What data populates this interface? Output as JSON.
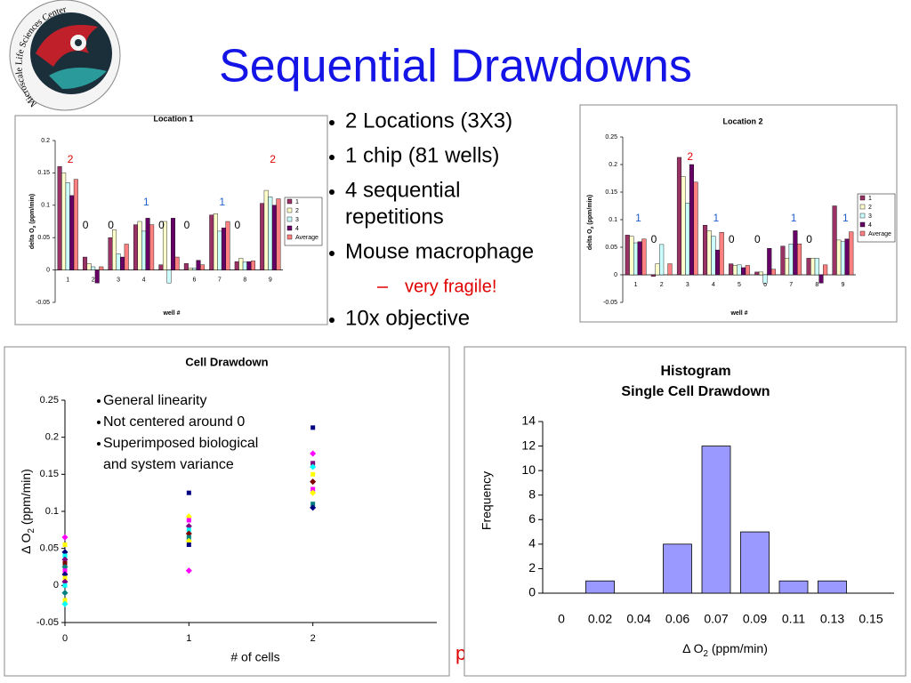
{
  "title": "Sequential Drawdowns",
  "logo_text": "Microscale Life Sciences Center",
  "bullets": [
    {
      "lines": [
        "2 Locations (3X3)"
      ],
      "level": 1
    },
    {
      "lines": [
        "1 chip (81 wells)"
      ],
      "level": 1
    },
    {
      "lines": [
        "4 sequential",
        "repetitions"
      ],
      "level": 1
    },
    {
      "lines": [
        "Mouse macrophage"
      ],
      "level": 1
    },
    {
      "lines": [
        "very fragile!"
      ],
      "level": 2
    },
    {
      "lines": [
        "10x objective"
      ],
      "level": 1
    }
  ],
  "note": "paper in progress",
  "chart_data": [
    {
      "type": "bar",
      "title": "Location 1",
      "categories": [
        "1",
        "2",
        "3",
        "4",
        "5",
        "6",
        "7",
        "8",
        "9"
      ],
      "series": [
        {
          "name": "1",
          "color": "#993366",
          "values": [
            0.16,
            0.02,
            0.05,
            0.07,
            0.008,
            0.01,
            0.085,
            0.013,
            0.103
          ]
        },
        {
          "name": "2",
          "color": "#ffffcc",
          "values": [
            0.15,
            0.01,
            0.062,
            0.075,
            0.075,
            0.003,
            0.087,
            0.018,
            0.123
          ]
        },
        {
          "name": "3",
          "color": "#ccffff",
          "values": [
            0.135,
            0.005,
            0.025,
            0.06,
            -0.02,
            0.003,
            0.06,
            0.012,
            0.113
          ]
        },
        {
          "name": "4",
          "color": "#660066",
          "values": [
            0.115,
            -0.02,
            0.02,
            0.08,
            0.08,
            0.015,
            0.065,
            0.013,
            0.1
          ]
        },
        {
          "name": "Average",
          "color": "#ff8080",
          "values": [
            0.14,
            0.005,
            0.04,
            0.07,
            0.02,
            0.008,
            0.075,
            0.014,
            0.11
          ]
        }
      ],
      "ylim": [
        -0.05,
        0.2
      ],
      "yticks": [
        -0.05,
        0,
        0.05,
        0.1,
        0.15,
        0.2
      ],
      "xlabel": "well #",
      "ylabel": [
        "delta O",
        "2",
        " (ppm/min)"
      ],
      "legend": "right",
      "annotations": [
        {
          "text": "2",
          "color": "#e00000"
        },
        {
          "text": "0",
          "color": "#000000"
        },
        {
          "text": "0",
          "color": "#000000"
        },
        {
          "text": "1",
          "color": "#1f5fcf"
        },
        {
          "text": "0",
          "color": "#000000"
        },
        {
          "text": "0",
          "color": "#000000"
        },
        {
          "text": "1",
          "color": "#1f5fcf"
        },
        {
          "text": "0",
          "color": "#000000"
        },
        {
          "text": "2",
          "color": "#e00000"
        }
      ]
    },
    {
      "type": "bar",
      "title": "Location 2",
      "categories": [
        "1",
        "2",
        "3",
        "4",
        "5",
        "6",
        "7",
        "8",
        "9"
      ],
      "series": [
        {
          "name": "1",
          "color": "#993366",
          "values": [
            0.072,
            -0.003,
            0.213,
            0.09,
            0.02,
            0.005,
            0.052,
            0.03,
            0.125
          ]
        },
        {
          "name": "2",
          "color": "#ffffcc",
          "values": [
            0.07,
            0.02,
            0.178,
            0.08,
            0.017,
            0.005,
            0.03,
            0.03,
            0.063
          ]
        },
        {
          "name": "3",
          "color": "#ccffff",
          "values": [
            0.058,
            0.055,
            0.13,
            0.07,
            0.018,
            -0.015,
            0.056,
            0.03,
            0.06
          ]
        },
        {
          "name": "4",
          "color": "#660066",
          "values": [
            0.06,
            0,
            0.2,
            0.045,
            0.013,
            0.048,
            0.08,
            -0.015,
            0.065
          ]
        },
        {
          "name": "Average",
          "color": "#ff8080",
          "values": [
            0.065,
            0.02,
            0.168,
            0.077,
            0.017,
            0.01,
            0.056,
            0.018,
            0.078
          ]
        }
      ],
      "ylim": [
        -0.05,
        0.25
      ],
      "yticks": [
        -0.05,
        0,
        0.05,
        0.1,
        0.15,
        0.2,
        0.25
      ],
      "xlabel": "well #",
      "ylabel": [
        "delta O",
        "2",
        " (ppm/min)"
      ],
      "legend": "right",
      "annotations": [
        {
          "text": "1",
          "color": "#1f5fcf"
        },
        {
          "text": "0",
          "color": "#000000"
        },
        {
          "text": "2",
          "color": "#e00000"
        },
        {
          "text": "1",
          "color": "#1f5fcf"
        },
        {
          "text": "0",
          "color": "#000000"
        },
        {
          "text": "0",
          "color": "#000000"
        },
        {
          "text": "1",
          "color": "#1f5fcf"
        },
        {
          "text": "0",
          "color": "#000000"
        },
        {
          "text": "1",
          "color": "#1f5fcf"
        }
      ]
    },
    {
      "type": "scatter",
      "title": "Cell Drawdown",
      "x": [
        0,
        0,
        0,
        0,
        0,
        0,
        0,
        0,
        0,
        0,
        0,
        0,
        0,
        0,
        0,
        1,
        1,
        1,
        1,
        1,
        1,
        1,
        1,
        1,
        1,
        2,
        2,
        2,
        2,
        2,
        2,
        2,
        2,
        2,
        2
      ],
      "y": [
        0.065,
        0.055,
        0.045,
        0.04,
        0.035,
        0.03,
        0.025,
        0.02,
        0.015,
        0.01,
        0.005,
        0,
        -0.01,
        -0.02,
        -0.025,
        0.125,
        0.093,
        0.088,
        0.08,
        0.075,
        0.07,
        0.065,
        0.06,
        0.055,
        0.02,
        0.213,
        0.178,
        0.165,
        0.16,
        0.15,
        0.14,
        0.13,
        0.125,
        0.11,
        0.105
      ],
      "colors": [
        "#ff00ff",
        "#ffff00",
        "#000080",
        "#00ffff",
        "#800080",
        "#800000",
        "#008080",
        "#ff00ff",
        "#000080",
        "#ffff00",
        "#800080",
        "#00ffff",
        "#008080",
        "#ffff00",
        "#00ffff",
        "#000080",
        "#ffff00",
        "#ff00ff",
        "#800080",
        "#00ffff",
        "#800000",
        "#008080",
        "#ffff00",
        "#000080",
        "#ff00ff",
        "#000080",
        "#ff00ff",
        "#800080",
        "#00ffff",
        "#ffff00",
        "#800000",
        "#ff00ff",
        "#ffff00",
        "#008080",
        "#000080"
      ],
      "xlim": [
        0,
        3
      ],
      "xticks": [
        0,
        1,
        2
      ],
      "ylim": [
        -0.05,
        0.25
      ],
      "yticks": [
        -0.05,
        0,
        0.05,
        0.1,
        0.15,
        0.2,
        0.25
      ],
      "xlabel": "# of cells",
      "ylabel": [
        "Δ O",
        "2",
        " (ppm/min)"
      ],
      "notes": [
        [
          "General linearity"
        ],
        [
          "Not centered around 0"
        ],
        [
          "Superimposed biological",
          "and system variance"
        ]
      ]
    },
    {
      "type": "column",
      "title": [
        "Histogram",
        "Single Cell Drawdown"
      ],
      "categories": [
        "0",
        "0.02",
        "0.04",
        "0.06",
        "0.07",
        "0.09",
        "0.11",
        "0.13",
        "0.15"
      ],
      "values": [
        0,
        1,
        0,
        4,
        12,
        5,
        1,
        1,
        0
      ],
      "color": "#9999ff",
      "ylim": [
        0,
        14
      ],
      "yticks": [
        0,
        2,
        4,
        6,
        8,
        10,
        12,
        14
      ],
      "xlabel": [
        "Δ O",
        "2",
        " (ppm/min)"
      ],
      "ylabel": "Frequency"
    }
  ]
}
